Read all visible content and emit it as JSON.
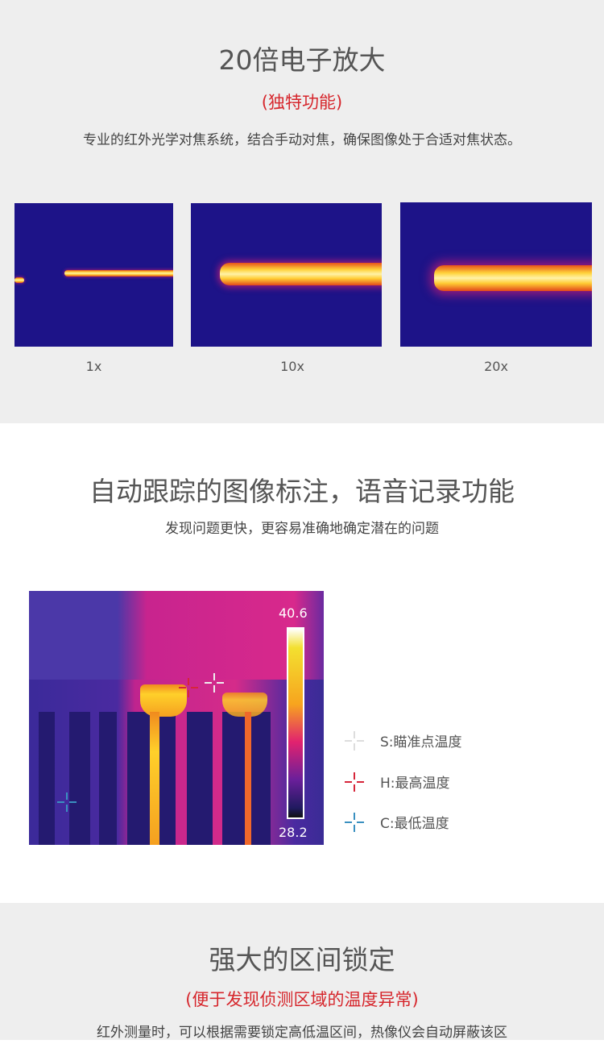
{
  "zoom_section": {
    "title": "20倍电子放大",
    "subtitle": "(独特功能)",
    "description": "专业的红外光学对焦系统，结合手动对焦，确保图像处于合适对焦状态。",
    "images": [
      {
        "label": "1x"
      },
      {
        "label": "10x"
      },
      {
        "label": "20x"
      }
    ]
  },
  "tracking_section": {
    "title": "自动跟踪的图像标注，语音记录功能",
    "description": "发现问题更快，更容易准确地确定潜在的问题",
    "scale_max": "40.6",
    "scale_min": "28.2",
    "legend": [
      {
        "label": "S:瞄准点温度",
        "color": "#dddddd"
      },
      {
        "label": "H:最高温度",
        "color": "#d6263a"
      },
      {
        "label": "C:最低温度",
        "color": "#3a90c0"
      }
    ]
  },
  "lock_section": {
    "title": "强大的区间锁定",
    "subtitle": "(便于发现侦测区域的温度异常)",
    "description": "红外测量时，可以根据需要锁定高低温区间，热像仪会自动屏蔽该区"
  }
}
